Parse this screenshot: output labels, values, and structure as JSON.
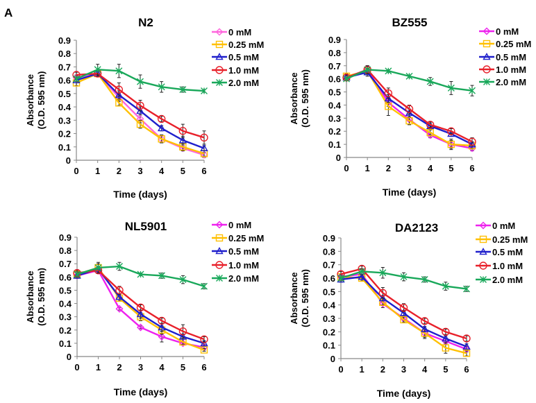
{
  "figure_label": "A",
  "chart_data": [
    {
      "type": "line",
      "title": "N2",
      "xlabel": "Time (days)",
      "ylabel": [
        "Absorbance",
        "(O.D. 595 nm)"
      ],
      "x": [
        0,
        1,
        2,
        3,
        4,
        5,
        6
      ],
      "ylim": [
        0,
        0.9
      ],
      "yticks": [
        "0",
        "0.1",
        "0.2",
        "0.3",
        "0.4",
        "0.5",
        "0.6",
        "0.7",
        "0.8",
        "0.9"
      ],
      "legend_position": "right",
      "grid": false,
      "series": [
        {
          "name": "0 mM",
          "color": "#ff66dd",
          "marker": "diamond",
          "values": [
            0.62,
            0.65,
            0.47,
            0.31,
            0.16,
            0.09,
            0.04
          ],
          "err": [
            0.02,
            0.02,
            0.03,
            0.03,
            0.03,
            0.02,
            0.02
          ]
        },
        {
          "name": "0.25 mM",
          "color": "#ffc000",
          "marker": "square",
          "values": [
            0.58,
            0.65,
            0.43,
            0.27,
            0.16,
            0.1,
            0.05
          ],
          "err": [
            0.02,
            0.02,
            0.02,
            0.03,
            0.03,
            0.03,
            0.02
          ]
        },
        {
          "name": "0.5 mM",
          "color": "#1f1fcc",
          "marker": "triangle",
          "values": [
            0.6,
            0.65,
            0.49,
            0.37,
            0.24,
            0.15,
            0.09
          ],
          "err": [
            0.02,
            0.02,
            0.03,
            0.03,
            0.02,
            0.03,
            0.02
          ]
        },
        {
          "name": "1.0 mM",
          "color": "#e8202a",
          "marker": "circle",
          "values": [
            0.64,
            0.65,
            0.53,
            0.41,
            0.31,
            0.22,
            0.17
          ],
          "err": [
            0.02,
            0.02,
            0.05,
            0.04,
            0.02,
            0.05,
            0.05
          ]
        },
        {
          "name": "2.0 mM",
          "color": "#19a85a",
          "marker": "asterisk",
          "values": [
            0.61,
            0.68,
            0.67,
            0.59,
            0.55,
            0.53,
            0.52
          ],
          "err": [
            0.02,
            0.04,
            0.05,
            0.05,
            0.04,
            0.02,
            0.01
          ]
        }
      ]
    },
    {
      "type": "line",
      "title": "BZ555",
      "xlabel": "Time (days)",
      "ylabel": [
        "Absorbance",
        "(O.D. 595 nm)"
      ],
      "x": [
        0,
        1,
        2,
        3,
        4,
        5,
        6
      ],
      "ylim": [
        0,
        0.9
      ],
      "yticks": [
        "0",
        "0.1",
        "0.2",
        "0.3",
        "0.4",
        "0.5",
        "0.6",
        "0.7",
        "0.8",
        "0.9"
      ],
      "legend_position": "right",
      "grid": false,
      "series": [
        {
          "name": "0 mM",
          "color": "#ee22ee",
          "marker": "diamond",
          "values": [
            0.61,
            0.67,
            0.42,
            0.29,
            0.17,
            0.1,
            0.07
          ],
          "err": [
            0.02,
            0.02,
            0.03,
            0.04,
            0.02,
            0.03,
            0.02
          ]
        },
        {
          "name": "0.25 mM",
          "color": "#ffc000",
          "marker": "square",
          "values": [
            0.62,
            0.66,
            0.39,
            0.28,
            0.19,
            0.1,
            0.09
          ],
          "err": [
            0.02,
            0.02,
            0.07,
            0.03,
            0.02,
            0.04,
            0.02
          ]
        },
        {
          "name": "0.5 mM",
          "color": "#1f1fcc",
          "marker": "triangle",
          "values": [
            0.61,
            0.65,
            0.45,
            0.34,
            0.24,
            0.18,
            0.1
          ],
          "err": [
            0.02,
            0.03,
            0.03,
            0.03,
            0.02,
            0.02,
            0.02
          ]
        },
        {
          "name": "1.0 mM",
          "color": "#e8202a",
          "marker": "circle",
          "values": [
            0.61,
            0.67,
            0.49,
            0.37,
            0.25,
            0.2,
            0.12
          ],
          "err": [
            0.02,
            0.03,
            0.04,
            0.03,
            0.02,
            0.02,
            0.03
          ]
        },
        {
          "name": "2.0 mM",
          "color": "#19a85a",
          "marker": "asterisk",
          "values": [
            0.6,
            0.67,
            0.66,
            0.62,
            0.58,
            0.53,
            0.51
          ],
          "err": [
            0.01,
            0.03,
            0.01,
            0.01,
            0.03,
            0.05,
            0.04
          ]
        }
      ]
    },
    {
      "type": "line",
      "title": "NL5901",
      "xlabel": "Time (days)",
      "ylabel": [
        "Absorbance",
        "(O.D. 595 nm)"
      ],
      "x": [
        0,
        1,
        2,
        3,
        4,
        5,
        6
      ],
      "ylim": [
        0,
        0.9
      ],
      "yticks": [
        "0",
        "0.1",
        "0.2",
        "0.3",
        "0.4",
        "0.5",
        "0.6",
        "0.7",
        "0.8",
        "0.9"
      ],
      "legend_position": "right",
      "grid": false,
      "series": [
        {
          "name": "0 mM",
          "color": "#ee22ee",
          "marker": "diamond",
          "values": [
            0.61,
            0.65,
            0.36,
            0.22,
            0.15,
            0.1,
            0.07
          ],
          "err": [
            0.02,
            0.02,
            0.01,
            0.01,
            0.04,
            0.01,
            0.02
          ]
        },
        {
          "name": "0.25 mM",
          "color": "#ffc000",
          "marker": "square",
          "values": [
            0.62,
            0.67,
            0.44,
            0.3,
            0.2,
            0.11,
            0.05
          ],
          "err": [
            0.02,
            0.03,
            0.02,
            0.03,
            0.03,
            0.02,
            0.01
          ]
        },
        {
          "name": "0.5 mM",
          "color": "#1f1fcc",
          "marker": "triangle",
          "values": [
            0.61,
            0.66,
            0.45,
            0.32,
            0.22,
            0.15,
            0.1
          ],
          "err": [
            0.02,
            0.02,
            0.02,
            0.03,
            0.03,
            0.02,
            0.02
          ]
        },
        {
          "name": "1.0 mM",
          "color": "#e8202a",
          "marker": "circle",
          "values": [
            0.63,
            0.65,
            0.5,
            0.37,
            0.27,
            0.19,
            0.13
          ],
          "err": [
            0.02,
            0.02,
            0.03,
            0.02,
            0.02,
            0.05,
            0.02
          ]
        },
        {
          "name": "2.0 mM",
          "color": "#19a85a",
          "marker": "asterisk",
          "values": [
            0.62,
            0.67,
            0.68,
            0.62,
            0.61,
            0.58,
            0.53
          ],
          "err": [
            0.02,
            0.04,
            0.03,
            0.01,
            0.02,
            0.03,
            0.02
          ]
        }
      ]
    },
    {
      "type": "line",
      "title": "DA2123",
      "xlabel": "Time (days)",
      "ylabel": [
        "Absorbance",
        "(O.D. 595 nm)"
      ],
      "x": [
        0,
        1,
        2,
        3,
        4,
        5,
        6
      ],
      "ylim": [
        0,
        0.9
      ],
      "yticks": [
        "0",
        "0.1",
        "0.2",
        "0.3",
        "0.4",
        "0.5",
        "0.6",
        "0.7",
        "0.8",
        "0.9"
      ],
      "legend_position": "right",
      "grid": false,
      "series": [
        {
          "name": "0 mM",
          "color": "#ee22ee",
          "marker": "diamond",
          "values": [
            0.61,
            0.63,
            0.41,
            0.3,
            0.19,
            0.13,
            0.07
          ],
          "err": [
            0.02,
            0.02,
            0.03,
            0.02,
            0.03,
            0.02,
            0.02
          ]
        },
        {
          "name": "0.25 mM",
          "color": "#ffc000",
          "marker": "square",
          "values": [
            0.61,
            0.6,
            0.42,
            0.29,
            0.19,
            0.08,
            0.04
          ],
          "err": [
            0.02,
            0.02,
            0.02,
            0.02,
            0.04,
            0.04,
            0.02
          ]
        },
        {
          "name": "0.5 mM",
          "color": "#1f1fcc",
          "marker": "triangle",
          "values": [
            0.59,
            0.61,
            0.45,
            0.34,
            0.22,
            0.15,
            0.09
          ],
          "err": [
            0.02,
            0.02,
            0.02,
            0.02,
            0.02,
            0.02,
            0.02
          ]
        },
        {
          "name": "1.0 mM",
          "color": "#e8202a",
          "marker": "circle",
          "values": [
            0.63,
            0.67,
            0.49,
            0.38,
            0.28,
            0.2,
            0.15
          ],
          "err": [
            0.02,
            0.02,
            0.04,
            0.03,
            0.02,
            0.02,
            0.02
          ]
        },
        {
          "name": "2.0 mM",
          "color": "#19a85a",
          "marker": "asterisk",
          "values": [
            0.6,
            0.65,
            0.64,
            0.61,
            0.59,
            0.54,
            0.52
          ],
          "err": [
            0.02,
            0.02,
            0.04,
            0.03,
            0.02,
            0.03,
            0.02
          ]
        }
      ]
    }
  ]
}
